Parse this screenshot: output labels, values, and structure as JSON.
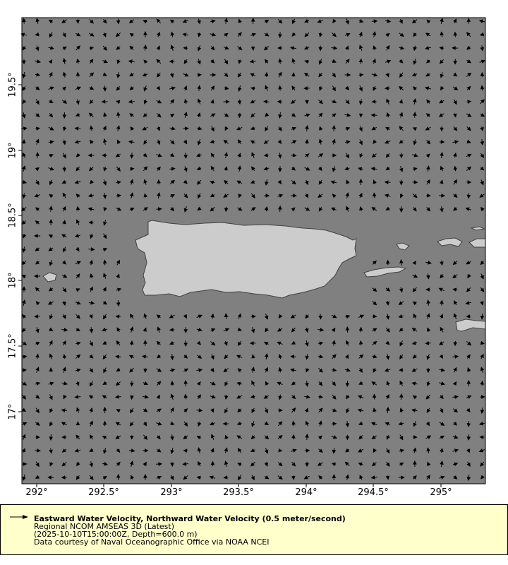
{
  "map": {
    "ocean_color": "#808080",
    "land_color": "#cccccc",
    "coast_color": "#404040",
    "arrow_color": "#000000",
    "lon_ticks": [
      "292°",
      "292.5°",
      "293°",
      "293.5°",
      "294°",
      "294.5°",
      "295°"
    ],
    "lat_ticks": [
      "19.5°",
      "19°",
      "18.5°",
      "18°",
      "17.5°",
      "17°"
    ]
  },
  "legend": {
    "background": "#ffffcc",
    "title": "Eastward Water Velocity, Northward Water Velocity (0.5 meter/second)",
    "dataset": "Regional NCOM AMSEAS 3D (Latest)",
    "time_depth": "(2025-10-10T15:00:00Z, Depth=600.0 m)",
    "credit": "Data courtesy of Naval Oceanographic Office via NOAA NCEI"
  }
}
